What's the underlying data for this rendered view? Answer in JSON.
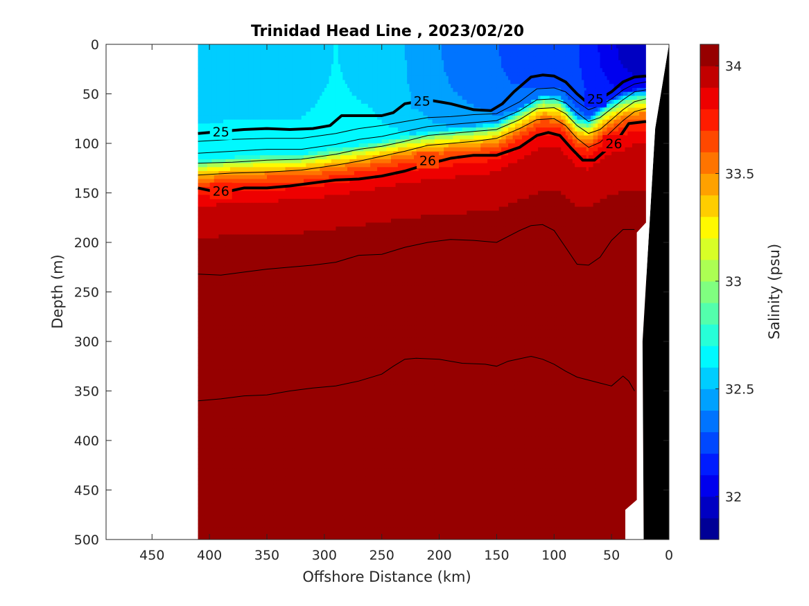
{
  "chart_data": {
    "type": "heatmap",
    "title": "Trinidad Head Line , 2023/02/20",
    "xlabel": "Offshore Distance (km)",
    "ylabel": "Depth (m)",
    "colorbar_label": "Salinity (psu)",
    "xlim": [
      490,
      0
    ],
    "ylim": [
      0,
      500
    ],
    "clim": [
      31.8,
      34.1
    ],
    "x_ticks": [
      450,
      400,
      350,
      300,
      250,
      200,
      150,
      100,
      50,
      0
    ],
    "y_ticks": [
      0,
      50,
      100,
      150,
      200,
      250,
      300,
      350,
      400,
      450,
      500
    ],
    "colorbar_ticks": [
      32,
      32.5,
      33,
      33.5,
      34
    ],
    "colormap": "jet",
    "grid": false,
    "data_extent_km": [
      20,
      410
    ],
    "bottom_color": "#000000",
    "salinity_profile_model": {
      "x_km": [
        410,
        380,
        350,
        320,
        290,
        260,
        230,
        200,
        170,
        150,
        130,
        110,
        95,
        80,
        70,
        55,
        40,
        25
      ],
      "halocline_depth_m": [
        118,
        114,
        112,
        111,
        106,
        100,
        92,
        86,
        82,
        78,
        64,
        50,
        52,
        72,
        74,
        58,
        48,
        44
      ],
      "surface_salinity": [
        32.58,
        32.58,
        32.58,
        32.58,
        32.6,
        32.58,
        32.5,
        32.4,
        32.35,
        32.3,
        32.25,
        32.2,
        32.2,
        32.2,
        32.15,
        32.05,
        31.95,
        31.9
      ],
      "deep_salinity": 34.08,
      "layer_thickness_m": 30
    },
    "density_contours": [
      {
        "label": "25",
        "x": [
          410,
          390,
          370,
          350,
          330,
          310,
          295,
          285,
          270,
          250,
          240,
          230,
          210,
          190,
          170,
          155,
          145,
          135,
          120,
          110,
          100,
          90,
          80,
          70,
          60,
          50,
          40,
          30,
          20
        ],
        "y": [
          90,
          88,
          86,
          85,
          86,
          85,
          82,
          72,
          72,
          72,
          69,
          60,
          56,
          60,
          66,
          67,
          60,
          48,
          33,
          31,
          32,
          38,
          50,
          60,
          55,
          48,
          38,
          33,
          32
        ]
      },
      {
        "label": "26",
        "x": [
          410,
          390,
          370,
          350,
          330,
          310,
          290,
          270,
          250,
          230,
          210,
          190,
          170,
          150,
          130,
          115,
          105,
          95,
          85,
          75,
          65,
          55,
          45,
          35,
          20
        ],
        "y": [
          145,
          150,
          145,
          145,
          143,
          140,
          137,
          136,
          133,
          128,
          121,
          115,
          112,
          112,
          104,
          92,
          89,
          92,
          105,
          117,
          117,
          107,
          97,
          80,
          78
        ]
      }
    ],
    "contour_labels": [
      {
        "text": "25",
        "x": 390,
        "y": 88
      },
      {
        "text": "25",
        "x": 215,
        "y": 57
      },
      {
        "text": "25",
        "x": 64,
        "y": 55
      },
      {
        "text": "26",
        "x": 390,
        "y": 148
      },
      {
        "text": "26",
        "x": 210,
        "y": 117
      },
      {
        "text": "26",
        "x": 48,
        "y": 100
      }
    ],
    "thin_contours": [
      {
        "x": [
          410,
          380,
          350,
          320,
          290,
          270,
          250,
          230,
          210,
          190,
          170,
          150,
          130,
          115,
          100,
          90,
          80,
          70,
          60,
          50,
          40,
          30,
          20
        ],
        "y": [
          98,
          96,
          95,
          95,
          90,
          85,
          82,
          78,
          74,
          73,
          71,
          70,
          58,
          45,
          44,
          48,
          58,
          66,
          62,
          55,
          46,
          40,
          38
        ]
      },
      {
        "x": [
          410,
          380,
          350,
          320,
          290,
          270,
          250,
          230,
          210,
          190,
          170,
          150,
          130,
          115,
          100,
          90,
          80,
          70,
          60,
          50,
          40,
          30,
          20
        ],
        "y": [
          110,
          108,
          106,
          106,
          101,
          96,
          93,
          88,
          83,
          81,
          79,
          77,
          67,
          56,
          55,
          59,
          69,
          78,
          74,
          65,
          56,
          48,
          46
        ]
      },
      {
        "x": [
          410,
          380,
          350,
          320,
          290,
          270,
          250,
          230,
          210,
          190,
          170,
          150,
          130,
          115,
          100,
          90,
          80,
          70,
          60,
          50,
          40,
          30,
          20
        ],
        "y": [
          120,
          119,
          117,
          116,
          111,
          106,
          103,
          98,
          92,
          90,
          88,
          86,
          76,
          65,
          64,
          70,
          82,
          90,
          86,
          76,
          66,
          58,
          55
        ]
      },
      {
        "x": [
          410,
          380,
          350,
          320,
          290,
          270,
          250,
          230,
          210,
          190,
          170,
          150,
          130,
          115,
          100,
          90,
          80,
          70,
          60,
          50,
          40,
          30,
          20
        ],
        "y": [
          132,
          130,
          129,
          127,
          122,
          118,
          113,
          108,
          102,
          100,
          98,
          95,
          85,
          76,
          75,
          82,
          95,
          104,
          99,
          88,
          77,
          68,
          65
        ]
      },
      {
        "x": [
          410,
          390,
          370,
          350,
          330,
          310,
          290,
          270,
          250,
          230,
          210,
          190,
          170,
          150,
          130,
          120,
          110,
          100,
          90,
          80,
          70,
          60,
          50,
          40,
          30
        ],
        "y": [
          232,
          233,
          230,
          227,
          225,
          223,
          220,
          213,
          212,
          205,
          200,
          197,
          198,
          200,
          188,
          183,
          182,
          188,
          205,
          222,
          223,
          215,
          198,
          187,
          187
        ]
      },
      {
        "x": [
          410,
          390,
          370,
          350,
          330,
          310,
          290,
          270,
          250,
          240,
          230,
          220,
          200,
          180,
          160,
          150,
          140,
          120,
          110,
          100,
          90,
          80,
          60,
          50,
          45,
          40,
          35,
          30
        ],
        "y": [
          360,
          358,
          355,
          354,
          350,
          347,
          345,
          340,
          333,
          325,
          318,
          317,
          318,
          322,
          323,
          325,
          320,
          315,
          318,
          323,
          330,
          336,
          342,
          345,
          340,
          335,
          340,
          350
        ]
      }
    ]
  }
}
